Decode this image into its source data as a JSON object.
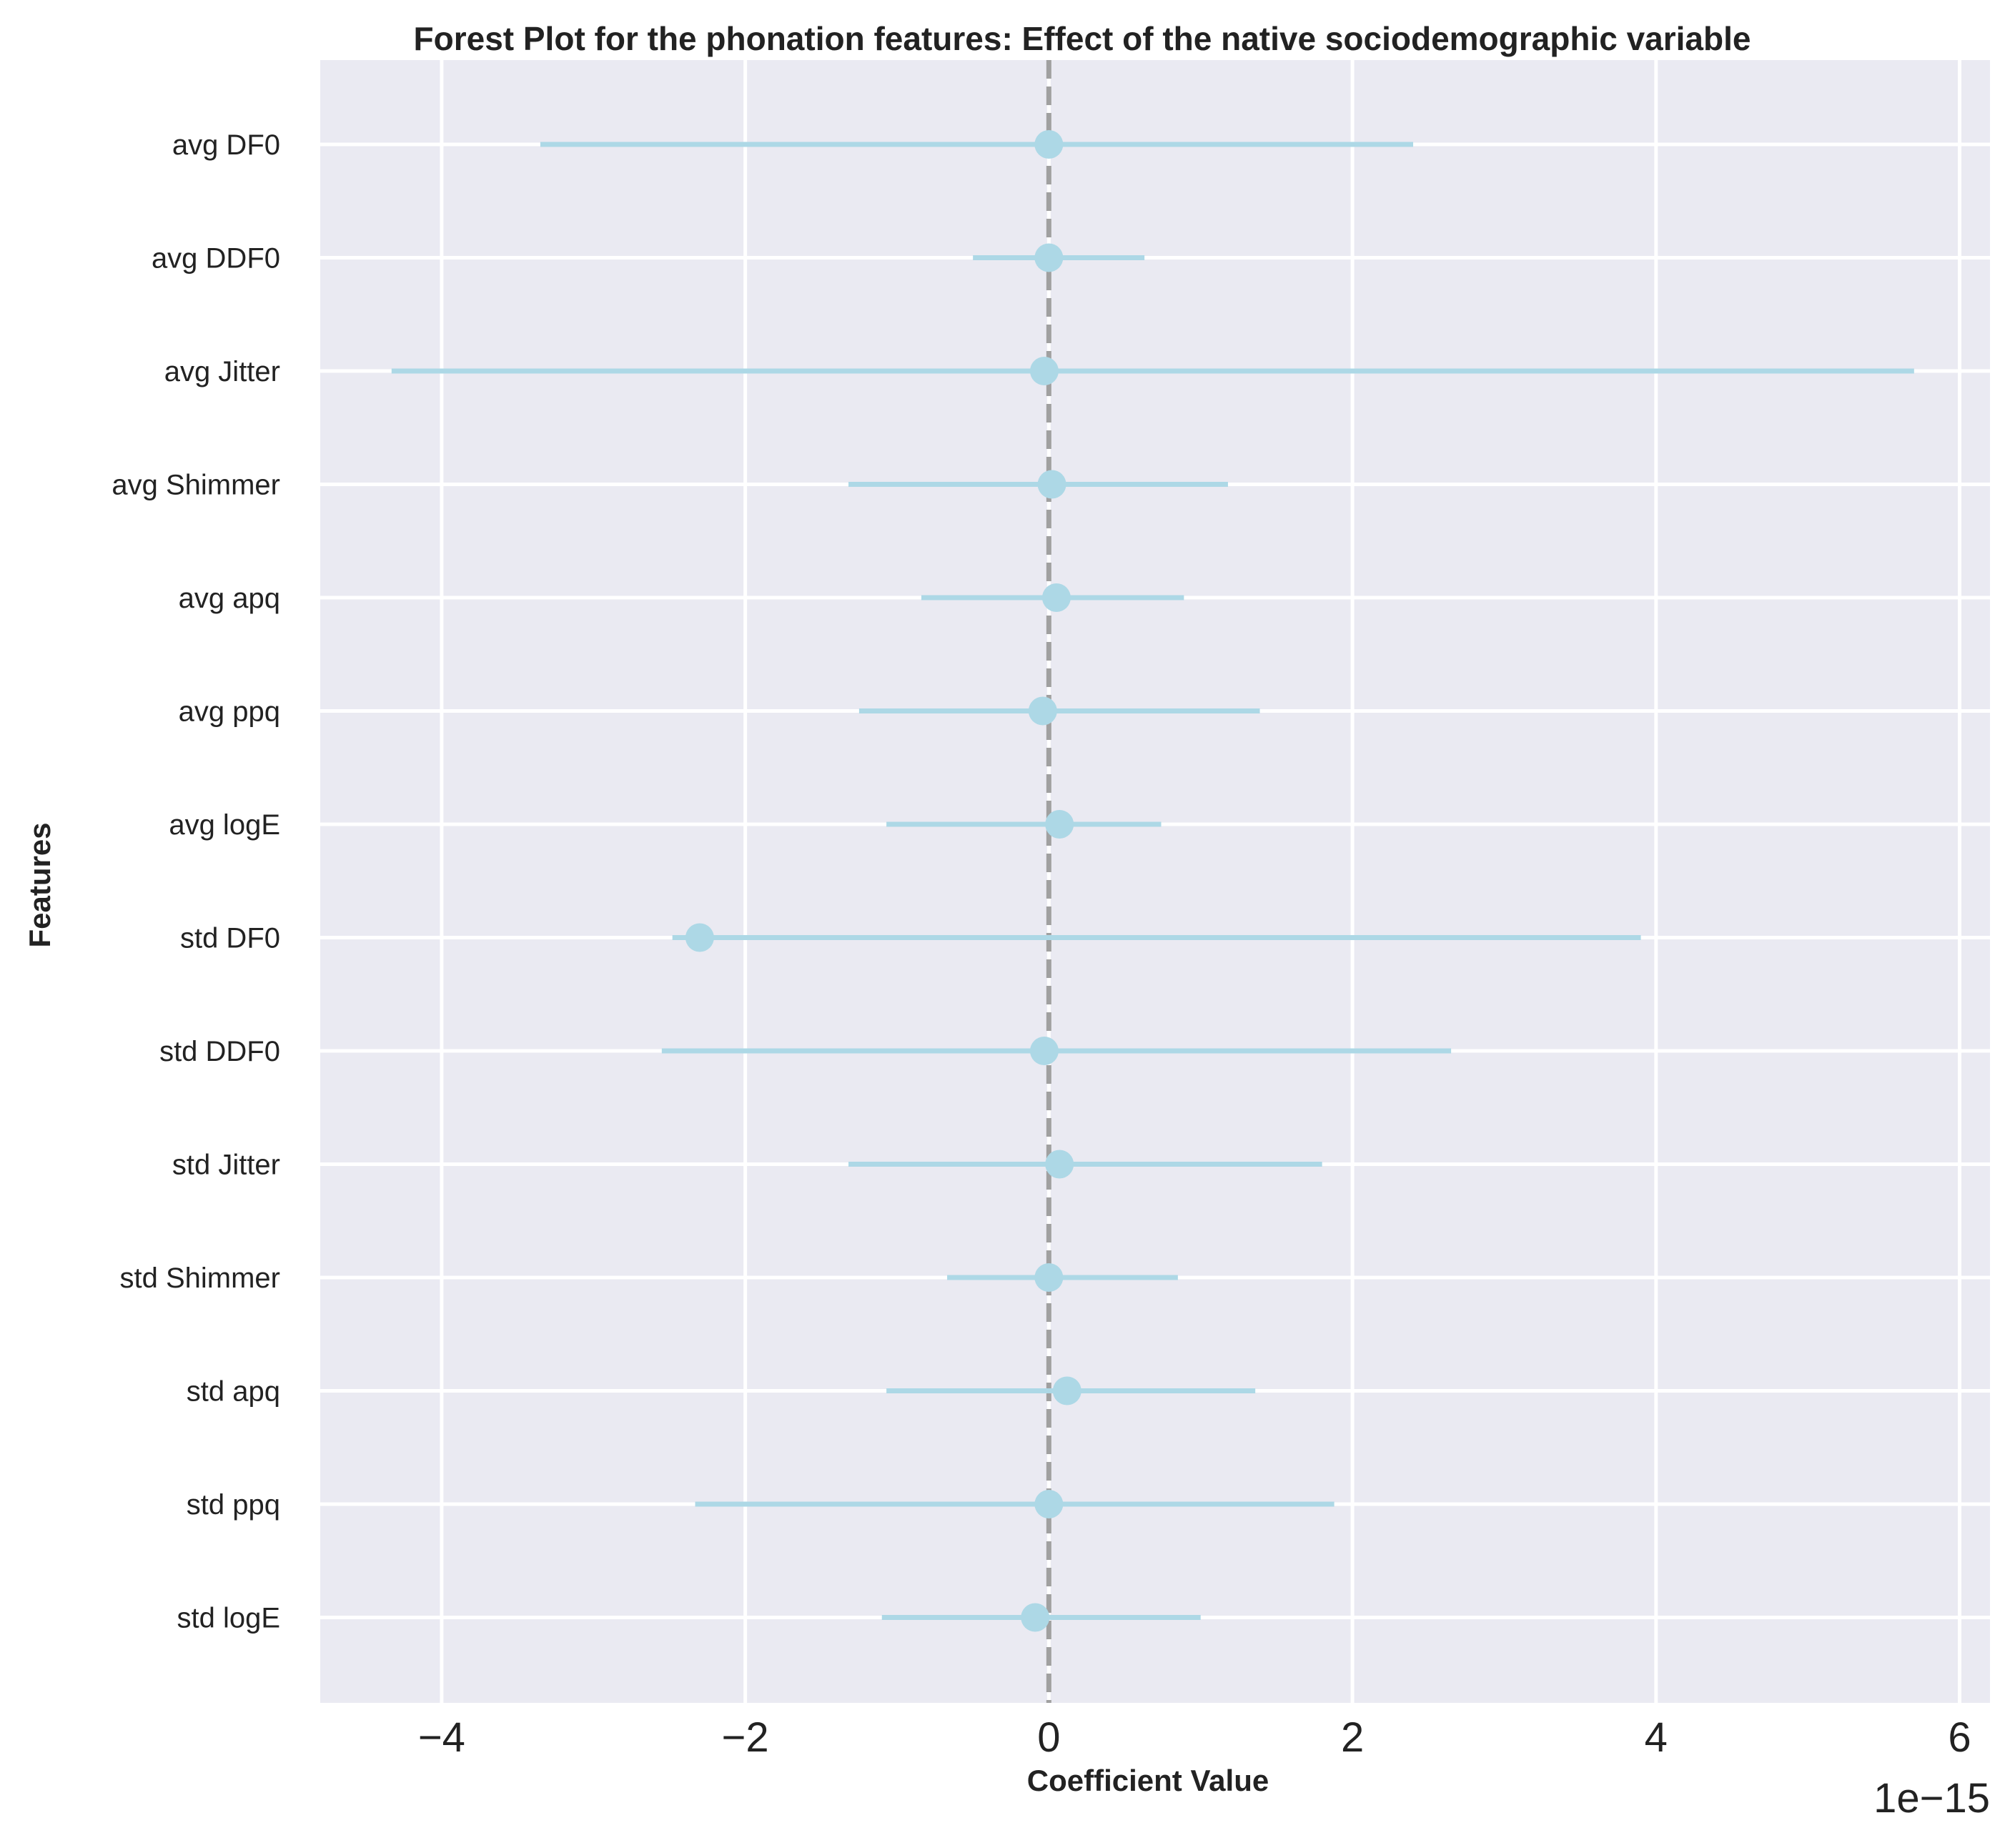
{
  "chart_data": {
    "type": "forest",
    "title": "Forest Plot for the phonation features: Effect of the native sociodemographic variable",
    "xlabel": "Coefficient Value",
    "ylabel": "Features",
    "x_offset_label": "1e−15",
    "x_scale": 1e-15,
    "xlim": [
      -4.8,
      6.2
    ],
    "xticks": [
      -4,
      -2,
      0,
      2,
      4,
      6
    ],
    "xtick_labels": [
      "−4",
      "−2",
      "0",
      "2",
      "4",
      "6"
    ],
    "reference_line_x": 0,
    "grid": true,
    "colors": {
      "background": "#eaeaf2",
      "grid": "#ffffff",
      "marker": "#add8e6",
      "reference_line": "#a0a0a0"
    },
    "features": [
      {
        "name": "avg DF0",
        "estimate": 0.0,
        "ci_low": -3.35,
        "ci_high": 2.4
      },
      {
        "name": "avg DDF0",
        "estimate": 0.0,
        "ci_low": -0.5,
        "ci_high": 0.63
      },
      {
        "name": "avg Jitter",
        "estimate": -0.03,
        "ci_low": -4.33,
        "ci_high": 5.7
      },
      {
        "name": "avg Shimmer",
        "estimate": 0.02,
        "ci_low": -1.32,
        "ci_high": 1.18
      },
      {
        "name": "avg apq",
        "estimate": 0.05,
        "ci_low": -0.84,
        "ci_high": 0.89
      },
      {
        "name": "avg ppq",
        "estimate": -0.04,
        "ci_low": -1.25,
        "ci_high": 1.39
      },
      {
        "name": "avg logE",
        "estimate": 0.07,
        "ci_low": -1.07,
        "ci_high": 0.74
      },
      {
        "name": "std DF0",
        "estimate": -2.3,
        "ci_low": -2.48,
        "ci_high": 3.9
      },
      {
        "name": "std DDF0",
        "estimate": -0.03,
        "ci_low": -2.55,
        "ci_high": 2.65
      },
      {
        "name": "std Jitter",
        "estimate": 0.07,
        "ci_low": -1.32,
        "ci_high": 1.8
      },
      {
        "name": "std Shimmer",
        "estimate": 0.0,
        "ci_low": -0.67,
        "ci_high": 0.85
      },
      {
        "name": "std apq",
        "estimate": 0.12,
        "ci_low": -1.07,
        "ci_high": 1.36
      },
      {
        "name": "std ppq",
        "estimate": 0.0,
        "ci_low": -2.33,
        "ci_high": 1.88
      },
      {
        "name": "std logE",
        "estimate": -0.09,
        "ci_low": -1.1,
        "ci_high": 1.0
      }
    ]
  }
}
